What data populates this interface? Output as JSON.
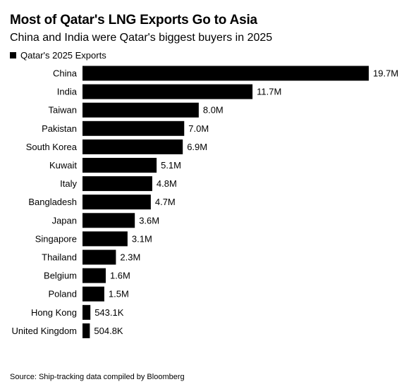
{
  "title": "Most of Qatar's LNG Exports Go to Asia",
  "subtitle": "China and India were Qatar's biggest buyers in 2025",
  "source": "Source: Ship-tracking data compiled by Bloomberg",
  "colors": {
    "bar": "#000000",
    "background": "#ffffff",
    "text": "#000000"
  },
  "chart_data": {
    "type": "bar",
    "orientation": "horizontal",
    "title": "Most of Qatar's LNG Exports Go to Asia",
    "subtitle": "China and India were Qatar's biggest buyers in 2025",
    "xlabel": "",
    "ylabel": "",
    "grid": false,
    "legend": "top-left",
    "categories": [
      "China",
      "India",
      "Taiwan",
      "Pakistan",
      "South Korea",
      "Kuwait",
      "Italy",
      "Bangladesh",
      "Japan",
      "Singapore",
      "Thailand",
      "Belgium",
      "Poland",
      "Hong Kong",
      "United Kingdom"
    ],
    "series": [
      {
        "name": "Qatar's 2025 Exports",
        "values": [
          19700000,
          11700000,
          8000000,
          7000000,
          6900000,
          5100000,
          4800000,
          4700000,
          3600000,
          3100000,
          2300000,
          1600000,
          1500000,
          543100,
          504800
        ],
        "labels": [
          "19.7M",
          "11.7M",
          "8.0M",
          "7.0M",
          "6.9M",
          "5.1M",
          "4.8M",
          "4.7M",
          "3.6M",
          "3.1M",
          "2.3M",
          "1.6M",
          "1.5M",
          "543.1K",
          "504.8K"
        ]
      }
    ],
    "xlim": [
      0,
      19700000
    ]
  }
}
